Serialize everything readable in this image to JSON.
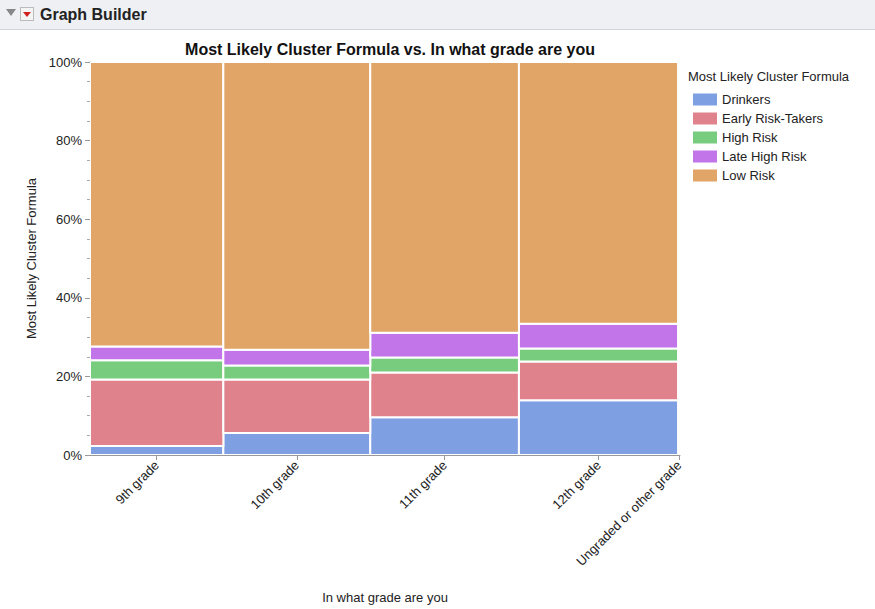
{
  "panel_title": "Graph Builder",
  "chart_data": {
    "type": "mosaic",
    "title": "Most Likely Cluster Formula vs. In what grade are you",
    "x_label": "In what grade are you",
    "y_label": "Most Likely Cluster Formula",
    "legend_title": "Most Likely Cluster Formula",
    "categories": [
      "9th grade",
      "10th grade",
      "11th grade",
      "12th grade",
      "Ungraded or other grade"
    ],
    "column_shares": [
      22.6,
      24.9,
      25.2,
      27.0,
      0.3
    ],
    "xlim": [
      0,
      100
    ],
    "ylim": [
      0,
      100
    ],
    "yticks": [
      {
        "value": 0,
        "label": "0%"
      },
      {
        "value": 20,
        "label": "20%"
      },
      {
        "value": 40,
        "label": "40%"
      },
      {
        "value": 60,
        "label": "60%"
      },
      {
        "value": 80,
        "label": "80%"
      },
      {
        "value": 100,
        "label": "100%"
      }
    ],
    "stacked": true,
    "grid": false,
    "legend": "right",
    "tick_labels": "y",
    "series": [
      {
        "name": "Drinkers",
        "color": "#7f9fe3",
        "values": [
          2.3,
          5.6,
          9.6,
          13.9,
          14.0
        ]
      },
      {
        "name": "Early Risk-Takers",
        "color": "#e0828c",
        "values": [
          16.9,
          13.6,
          11.4,
          9.9,
          10.0
        ]
      },
      {
        "name": "High Risk",
        "color": "#78cc7e",
        "values": [
          4.9,
          3.6,
          3.8,
          3.3,
          3.0
        ]
      },
      {
        "name": "Late High Risk",
        "color": "#c175e8",
        "values": [
          3.5,
          4.0,
          6.3,
          6.3,
          6.0
        ]
      },
      {
        "name": "Low Risk",
        "color": "#e0a567",
        "values": [
          72.4,
          73.2,
          68.9,
          66.6,
          67.0
        ]
      }
    ]
  }
}
